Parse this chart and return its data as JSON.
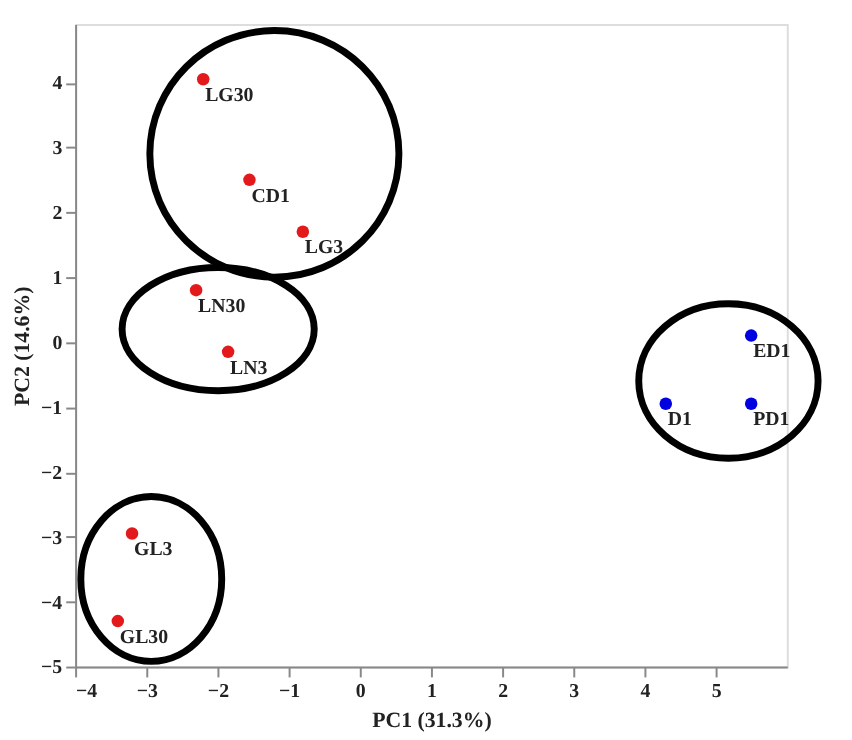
{
  "chart_data": {
    "type": "scatter",
    "xlabel": "PC1 (31.3%)",
    "ylabel": "PC2 (14.6%)",
    "xlim": [
      -4,
      6
    ],
    "ylim": [
      -5,
      4.9
    ],
    "xticks": [
      -4,
      -3,
      -2,
      -1,
      0,
      1,
      2,
      3,
      4,
      5
    ],
    "yticks": [
      -5,
      -4,
      -3,
      -2,
      -1,
      0,
      1,
      2,
      3,
      4
    ],
    "grid": false,
    "legend": false,
    "marker": "circle",
    "series": [
      {
        "color": "#e31a1c",
        "x": [
          -2.2,
          -1.55,
          -0.8,
          -2.3,
          -1.85,
          -3.2,
          -3.4
        ],
        "values": [
          4.05,
          2.5,
          1.7,
          0.8,
          -0.15,
          -2.95,
          -4.3
        ]
      },
      {
        "color": "#0000e0",
        "x": [
          5.5,
          4.3,
          5.5
        ],
        "values": [
          0.1,
          -0.95,
          -0.95
        ]
      }
    ],
    "annotations": [
      {
        "text": "LG30",
        "x": -2.2,
        "y": 4.05
      },
      {
        "text": "CD1",
        "x": -1.55,
        "y": 2.5
      },
      {
        "text": "LG3",
        "x": -0.8,
        "y": 1.7
      },
      {
        "text": "LN30",
        "x": -2.3,
        "y": 0.8
      },
      {
        "text": "LN3",
        "x": -1.85,
        "y": -0.15
      },
      {
        "text": "GL3",
        "x": -3.2,
        "y": -2.95
      },
      {
        "text": "GL30",
        "x": -3.4,
        "y": -4.3
      },
      {
        "text": "ED1",
        "x": 5.5,
        "y": 0.1
      },
      {
        "text": "D1",
        "x": 4.3,
        "y": -0.95
      },
      {
        "text": "PD1",
        "x": 5.5,
        "y": -0.95
      }
    ]
  }
}
